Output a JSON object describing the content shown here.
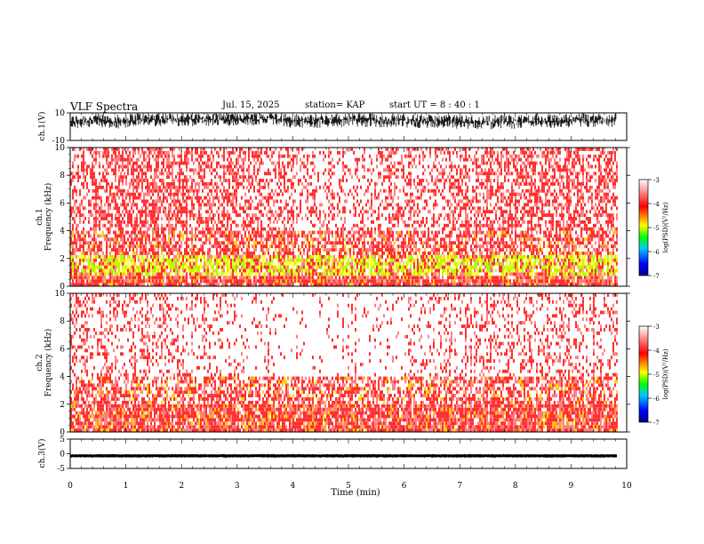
{
  "header": {
    "title": "VLF Spectra",
    "date": "Jul. 15, 2025",
    "station": "station= KAP",
    "start": "start UT = 8 : 40 : 1"
  },
  "chart_data": [
    {
      "type": "line",
      "panel": "ch1-waveform",
      "ylabel": "ch.1(V)",
      "ylim": [
        -10,
        10
      ],
      "yticks": [
        "10",
        "-10"
      ],
      "xlim": [
        0,
        10
      ],
      "xlabel": "",
      "description_series": "dense noisy waveform mostly between -5 and 10 V"
    },
    {
      "type": "heatmap",
      "panel": "ch1-spectrogram",
      "ylabel_line1": "ch.1",
      "ylabel_line2": "Frequency (kHz)",
      "ylim": [
        0,
        10
      ],
      "yticks": [
        "0",
        "2",
        "4",
        "6",
        "8",
        "10"
      ],
      "xlim": [
        0,
        10
      ],
      "data_end_min": 9.82,
      "colorbar": {
        "label": "log(PSD)(V²/Hz)",
        "range": [
          -7,
          -3
        ],
        "ticks": [
          "-3",
          "-4",
          "-5",
          "-6",
          "-7"
        ],
        "colors": [
          "#000080",
          "#0000ff",
          "#00c8ff",
          "#00ff00",
          "#ffff00",
          "#ff8000",
          "#ff0000",
          "#ff8080",
          "#ffffff"
        ]
      }
    },
    {
      "type": "heatmap",
      "panel": "ch2-spectrogram",
      "ylabel_line1": "ch.2",
      "ylabel_line2": "Frequency (kHz)",
      "ylim": [
        0,
        10
      ],
      "yticks": [
        "0",
        "2",
        "4",
        "6",
        "8",
        "10"
      ],
      "xlim": [
        0,
        10
      ],
      "data_end_min": 9.82,
      "colorbar": {
        "label": "log(PSD)(V²/Hz)",
        "range": [
          -7,
          -3
        ],
        "ticks": [
          "-3",
          "-4",
          "-5",
          "-6",
          "-7"
        ],
        "colors": [
          "#000080",
          "#0000ff",
          "#00c8ff",
          "#00ff00",
          "#ffff00",
          "#ff8000",
          "#ff0000",
          "#ff8080",
          "#ffffff"
        ]
      }
    },
    {
      "type": "line",
      "panel": "ch3-waveform",
      "ylabel": "ch.3(V)",
      "ylim": [
        -5,
        5
      ],
      "yticks": [
        "5",
        "0",
        "-5"
      ],
      "xlim": [
        0,
        10
      ],
      "xlabel": "Time (min)",
      "xticks": [
        "0",
        "1",
        "2",
        "3",
        "4",
        "5",
        "6",
        "7",
        "8",
        "9",
        "10"
      ],
      "description_series": "thin band around -0.7 V (approx -1.1 to -0.3)"
    }
  ]
}
